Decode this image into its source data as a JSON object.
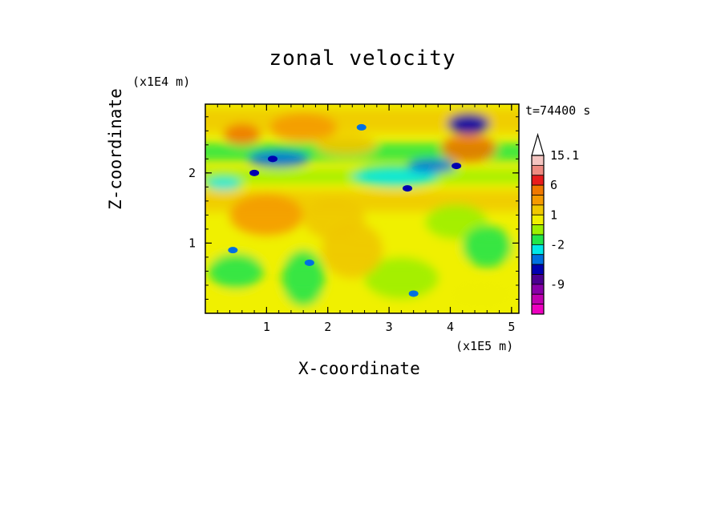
{
  "chart_data": {
    "type": "heatmap",
    "title": "zonal velocity",
    "xlabel": "X-coordinate",
    "ylabel": "Z-coordinate",
    "x_unit": "(x1E5 m)",
    "y_unit": "(x1E4 m)",
    "time_label": "t=74400 s",
    "xlim": [
      0,
      5.12
    ],
    "ylim": [
      0,
      2.98
    ],
    "x_ticks": [
      1,
      2,
      3,
      4,
      5
    ],
    "y_ticks": [
      1,
      2
    ],
    "x_tick_labels": [
      "1",
      "2",
      "3",
      "4",
      "5"
    ],
    "y_tick_labels": [
      "1",
      "2"
    ],
    "colorbar": {
      "levels_top_to_bottom": [
        {
          "label": "15.1",
          "color": "#f4c4c0"
        },
        {
          "label": "",
          "color": "#ee8a80"
        },
        {
          "label": "",
          "color": "#e81c1c"
        },
        {
          "label": "6",
          "color": "#f07800"
        },
        {
          "label": "",
          "color": "#f59a00"
        },
        {
          "label": "",
          "color": "#f0c800"
        },
        {
          "label": "1",
          "color": "#f0f000"
        },
        {
          "label": "",
          "color": "#9cf000"
        },
        {
          "label": "",
          "color": "#22e64a"
        },
        {
          "label": "-2",
          "color": "#00e8e8"
        },
        {
          "label": "",
          "color": "#0070e0"
        },
        {
          "label": "",
          "color": "#0000b0"
        },
        {
          "label": "",
          "color": "#4a0090"
        },
        {
          "label": "-9",
          "color": "#8800a8"
        },
        {
          "label": "",
          "color": "#c000b0"
        },
        {
          "label": "",
          "color": "#ee00c0"
        }
      ]
    },
    "field": {
      "description_blobs": [
        {
          "x": 1.6,
          "z": 2.65,
          "rx": 0.55,
          "rz": 0.2,
          "level": 4
        },
        {
          "x": 0.6,
          "z": 2.55,
          "rx": 0.3,
          "rz": 0.15,
          "level": 3
        },
        {
          "x": 4.3,
          "z": 2.35,
          "rx": 0.45,
          "rz": 0.2,
          "level": 3
        },
        {
          "x": 4.3,
          "z": 2.7,
          "rx": 0.35,
          "rz": 0.15,
          "level": 11
        },
        {
          "x": 1.2,
          "z": 2.2,
          "rx": 0.5,
          "rz": 0.12,
          "level": 10
        },
        {
          "x": 3.1,
          "z": 1.95,
          "rx": 0.7,
          "rz": 0.15,
          "level": 9
        },
        {
          "x": 0.3,
          "z": 1.85,
          "rx": 0.3,
          "rz": 0.1,
          "level": 9
        },
        {
          "x": 1.0,
          "z": 1.4,
          "rx": 0.6,
          "rz": 0.3,
          "level": 4
        },
        {
          "x": 2.1,
          "z": 1.35,
          "rx": 0.5,
          "rz": 0.3,
          "level": 5
        },
        {
          "x": 4.1,
          "z": 1.3,
          "rx": 0.5,
          "rz": 0.25,
          "level": 7
        },
        {
          "x": 4.6,
          "z": 0.95,
          "rx": 0.4,
          "rz": 0.3,
          "level": 8
        },
        {
          "x": 1.6,
          "z": 0.5,
          "rx": 0.35,
          "rz": 0.4,
          "level": 8
        },
        {
          "x": 0.5,
          "z": 0.6,
          "rx": 0.45,
          "rz": 0.25,
          "level": 8
        },
        {
          "x": 3.2,
          "z": 0.5,
          "rx": 0.6,
          "rz": 0.3,
          "level": 7
        },
        {
          "x": 2.4,
          "z": 0.9,
          "rx": 0.5,
          "rz": 0.4,
          "level": 5
        },
        {
          "x": 4.5,
          "z": 0.3,
          "rx": 0.5,
          "rz": 0.2,
          "level": 6
        },
        {
          "x": 3.7,
          "z": 2.1,
          "rx": 0.4,
          "rz": 0.1,
          "level": 10
        },
        {
          "x": 2.3,
          "z": 2.4,
          "rx": 0.5,
          "rz": 0.15,
          "level": 5
        }
      ]
    }
  }
}
